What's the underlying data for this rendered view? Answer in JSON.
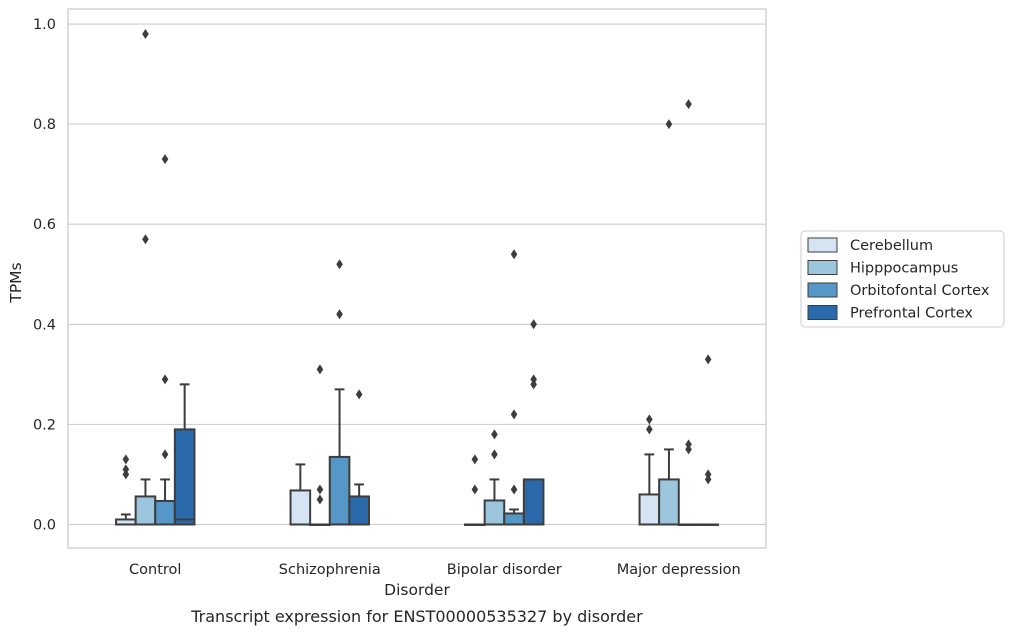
{
  "chart_data": {
    "type": "box",
    "title": "",
    "caption": "Transcript expression for ENST00000535327 by disorder",
    "xlabel": "Disorder",
    "ylabel": "TPMs",
    "ylim": [
      -0.047,
      1.03
    ],
    "yticks": [
      0.0,
      0.2,
      0.4,
      0.6,
      0.8,
      1.0
    ],
    "ytick_labels": [
      "0.0",
      "0.2",
      "0.4",
      "0.6",
      "0.8",
      "1.0"
    ],
    "grid": "horizontal",
    "legend_position": "right",
    "categories": [
      "Control",
      "Schizophrenia",
      "Bipolar disorder",
      "Major depression"
    ],
    "series": [
      {
        "name": "Cerebellum",
        "color": "#d4e4f2",
        "boxes": [
          {
            "q1": 0.0,
            "median": 0.0,
            "q3": 0.01,
            "whisker_low": 0.0,
            "whisker_high": 0.02,
            "outliers": [
              0.1,
              0.11,
              0.13
            ]
          },
          {
            "q1": 0.0,
            "median": 0.0,
            "q3": 0.068,
            "whisker_low": 0.0,
            "whisker_high": 0.12,
            "outliers": []
          },
          {
            "q1": 0.0,
            "median": 0.0,
            "q3": 0.0,
            "whisker_low": 0.0,
            "whisker_high": 0.0,
            "outliers": [
              0.07,
              0.13
            ]
          },
          {
            "q1": 0.0,
            "median": 0.0,
            "q3": 0.06,
            "whisker_low": 0.0,
            "whisker_high": 0.14,
            "outliers": [
              0.19,
              0.21
            ]
          }
        ]
      },
      {
        "name": "Hipppocampus",
        "color": "#9cc5de",
        "boxes": [
          {
            "q1": 0.0,
            "median": 0.0,
            "q3": 0.056,
            "whisker_low": 0.0,
            "whisker_high": 0.09,
            "outliers": [
              0.57,
              0.98
            ]
          },
          {
            "q1": 0.0,
            "median": 0.0,
            "q3": 0.0,
            "whisker_low": 0.0,
            "whisker_high": 0.0,
            "outliers": [
              0.05,
              0.07,
              0.31
            ]
          },
          {
            "q1": 0.0,
            "median": 0.0,
            "q3": 0.048,
            "whisker_low": 0.0,
            "whisker_high": 0.09,
            "outliers": [
              0.14,
              0.18
            ]
          },
          {
            "q1": 0.0,
            "median": 0.0,
            "q3": 0.09,
            "whisker_low": 0.0,
            "whisker_high": 0.15,
            "outliers": [
              0.8
            ]
          }
        ]
      },
      {
        "name": "Orbitofontal Cortex",
        "color": "#5597c6",
        "boxes": [
          {
            "q1": 0.0,
            "median": 0.0,
            "q3": 0.047,
            "whisker_low": 0.0,
            "whisker_high": 0.09,
            "outliers": [
              0.14,
              0.29,
              0.73
            ]
          },
          {
            "q1": 0.0,
            "median": 0.0,
            "q3": 0.135,
            "whisker_low": 0.0,
            "whisker_high": 0.27,
            "outliers": [
              0.42,
              0.52
            ]
          },
          {
            "q1": 0.0,
            "median": 0.0,
            "q3": 0.022,
            "whisker_low": 0.0,
            "whisker_high": 0.03,
            "outliers": [
              0.07,
              0.22,
              0.54
            ]
          },
          {
            "q1": 0.0,
            "median": 0.0,
            "q3": 0.0,
            "whisker_low": 0.0,
            "whisker_high": 0.0,
            "outliers": [
              0.15,
              0.16,
              0.84
            ]
          }
        ]
      },
      {
        "name": "Prefrontal Cortex",
        "color": "#2a6aab",
        "boxes": [
          {
            "q1": 0.0,
            "median": 0.01,
            "q3": 0.19,
            "whisker_low": 0.0,
            "whisker_high": 0.28,
            "outliers": []
          },
          {
            "q1": 0.0,
            "median": 0.0,
            "q3": 0.056,
            "whisker_low": 0.0,
            "whisker_high": 0.08,
            "outliers": [
              0.26
            ]
          },
          {
            "q1": 0.0,
            "median": 0.0,
            "q3": 0.09,
            "whisker_low": 0.0,
            "whisker_high": 0.09,
            "outliers": [
              0.28,
              0.29,
              0.4
            ]
          },
          {
            "q1": 0.0,
            "median": 0.0,
            "q3": 0.0,
            "whisker_low": 0.0,
            "whisker_high": 0.0,
            "outliers": [
              0.09,
              0.1,
              0.33
            ]
          }
        ]
      }
    ]
  }
}
